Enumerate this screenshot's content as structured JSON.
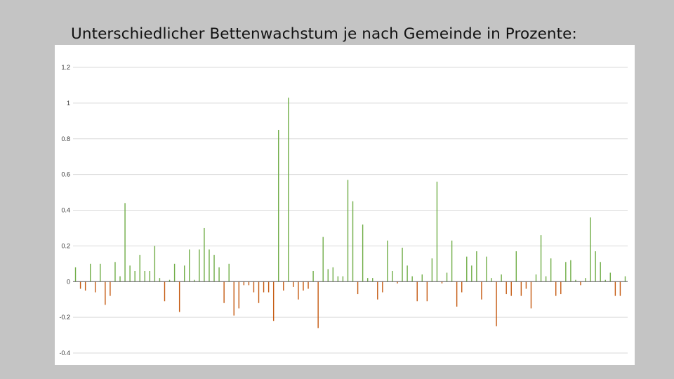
{
  "slide": {
    "title": "Unterschiedlicher Bettenwachstum je nach Gemeinde in Prozente:"
  },
  "chart_data": {
    "type": "bar",
    "title": "",
    "xlabel": "",
    "ylabel": "",
    "ylim": [
      -0.4,
      1.2
    ],
    "yticks": [
      "1.2",
      "1",
      "0.8",
      "0.6",
      "0.4",
      "0.2",
      "0",
      "-0.2",
      "-0.4"
    ],
    "ytick_values": [
      1.2,
      1,
      0.8,
      0.6,
      0.4,
      0.2,
      0,
      -0.2,
      -0.4
    ],
    "grid": true,
    "legend": "none",
    "colors": {
      "positive": "#70ad47",
      "negative": "#c55a11",
      "grid": "#d9d9d9",
      "axis": "#595959"
    },
    "values": [
      0.08,
      -0.04,
      -0.05,
      0.1,
      -0.06,
      0.1,
      -0.13,
      -0.08,
      0.11,
      0.03,
      0.44,
      0.09,
      0.06,
      0.15,
      0.06,
      0.06,
      0.2,
      0.02,
      -0.11,
      0.01,
      0.1,
      -0.17,
      0.09,
      0.18,
      0.01,
      0.18,
      0.3,
      0.18,
      0.15,
      0.08,
      -0.12,
      0.1,
      -0.19,
      -0.15,
      -0.02,
      -0.02,
      -0.06,
      -0.12,
      -0.06,
      -0.06,
      -0.22,
      0.85,
      -0.05,
      1.03,
      -0.03,
      -0.1,
      -0.05,
      -0.04,
      0.06,
      -0.26,
      0.25,
      0.07,
      0.08,
      0.03,
      0.03,
      0.57,
      0.45,
      -0.07,
      0.32,
      0.02,
      0.02,
      -0.1,
      -0.06,
      0.23,
      0.06,
      -0.01,
      0.19,
      0.09,
      0.03,
      -0.11,
      0.04,
      -0.11,
      0.13,
      0.56,
      -0.01,
      0.05,
      0.23,
      -0.14,
      -0.06,
      0.14,
      0.09,
      0.17,
      -0.1,
      0.14,
      0.02,
      -0.25,
      0.04,
      -0.07,
      -0.08,
      0.17,
      -0.08,
      -0.04,
      -0.15,
      0.04,
      0.26,
      0.03,
      0.13,
      -0.08,
      -0.07,
      0.11,
      0.12,
      0.01,
      -0.02,
      0.02,
      0.36,
      0.17,
      0.11,
      0.01,
      0.05,
      -0.08,
      -0.08,
      0.03
    ]
  }
}
